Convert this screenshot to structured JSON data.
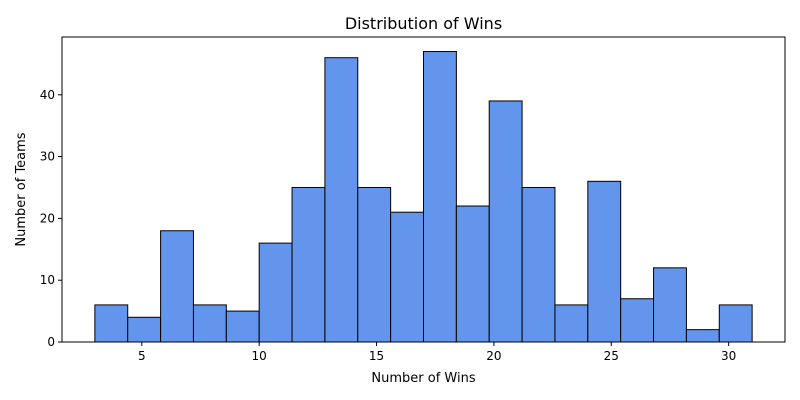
{
  "chart_data": {
    "type": "bar",
    "title": "Distribution of Wins",
    "xlabel": "Number of Wins",
    "ylabel": "Number of Teams",
    "bin_start": 3,
    "bin_width": 1.4,
    "values": [
      6,
      4,
      18,
      6,
      5,
      16,
      25,
      46,
      25,
      21,
      47,
      22,
      39,
      25,
      6,
      26,
      7,
      12,
      2,
      6
    ],
    "xlim": [
      1.6,
      32.4
    ],
    "ylim": [
      0,
      49.35
    ],
    "xticks": [
      5,
      10,
      15,
      20,
      25,
      30
    ],
    "yticks": [
      0,
      10,
      20,
      30,
      40
    ],
    "bar_color": "#6495ED",
    "edge_color": "#000000",
    "grid": false,
    "legend": "none"
  }
}
